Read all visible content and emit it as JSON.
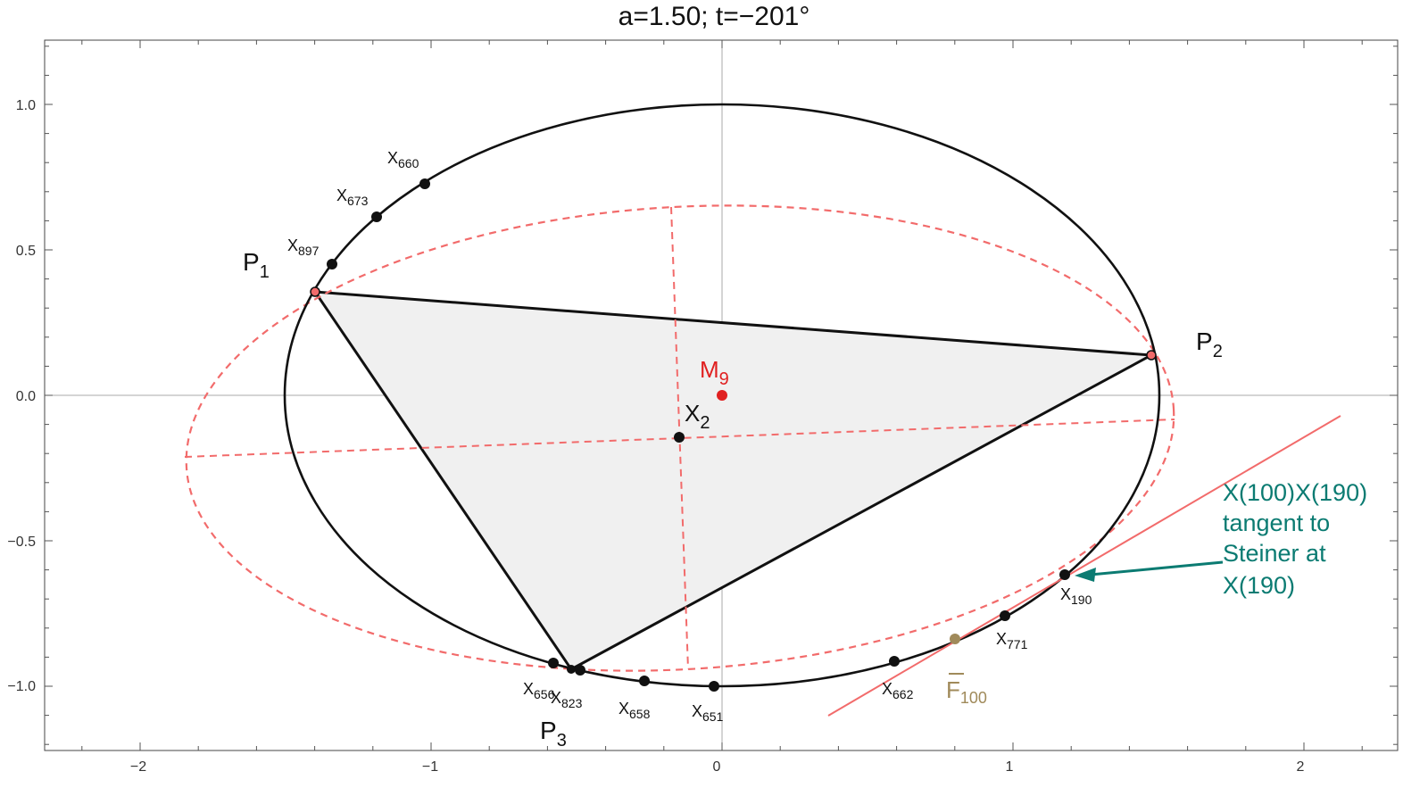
{
  "title": "a=1.50; t=−201°",
  "colors": {
    "ellipse": "#000000",
    "steiner": "#f26b6b",
    "triangle_fill": "#f0f0f0",
    "tangent_line": "#f26b6b",
    "annotation": "#0b7b72",
    "f100": "#a08a5a",
    "m9": "#e02020"
  },
  "axes": {
    "x_ticks": [
      "−2",
      "−1",
      "0",
      "1",
      "2"
    ],
    "y_ticks": [
      "−1.0",
      "−0.5",
      "0.0",
      "0.5",
      "1.0"
    ]
  },
  "labels": {
    "p1": {
      "base": "P",
      "sub": "1"
    },
    "p2": {
      "base": "P",
      "sub": "2"
    },
    "p3": {
      "base": "P",
      "sub": "3"
    },
    "m9": {
      "base": "M",
      "sub": "9"
    },
    "x2": {
      "base": "X",
      "sub": "2"
    },
    "f100": {
      "base": "F",
      "sub": "100"
    },
    "x660": {
      "base": "X",
      "sub": "660"
    },
    "x673": {
      "base": "X",
      "sub": "673"
    },
    "x897": {
      "base": "X",
      "sub": "897"
    },
    "x190": {
      "base": "X",
      "sub": "190"
    },
    "x771": {
      "base": "X",
      "sub": "771"
    },
    "x662": {
      "base": "X",
      "sub": "662"
    },
    "x651": {
      "base": "X",
      "sub": "651"
    },
    "x658": {
      "base": "X",
      "sub": "658"
    },
    "x823": {
      "base": "X",
      "sub": "823"
    },
    "x656": {
      "base": "X",
      "sub": "656"
    }
  },
  "annotation": {
    "line1": "X(100)X(190)",
    "line2": "tangent to",
    "line3": "Steiner at",
    "line4": "X(190)"
  }
}
